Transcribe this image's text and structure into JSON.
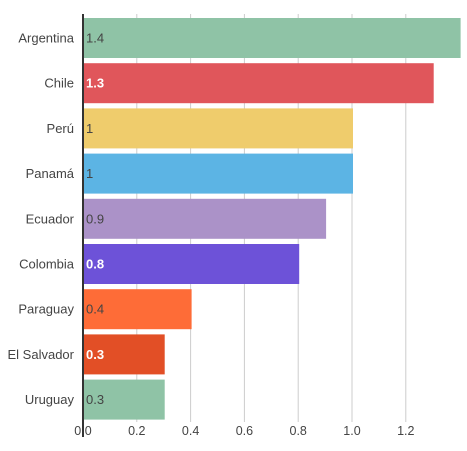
{
  "chart_data": {
    "type": "bar",
    "orientation": "horizontal",
    "categories": [
      "Argentina",
      "Chile",
      "Perú",
      "Panamá",
      "Ecuador",
      "Colombia",
      "Paraguay",
      "El Salvador",
      "Uruguay"
    ],
    "values": [
      1.4,
      1.3,
      1.0,
      1.0,
      0.9,
      0.8,
      0.4,
      0.3,
      0.3
    ],
    "data_labels": [
      "1.4",
      "1.3",
      "1",
      "1",
      "0.9",
      "0.8",
      "0.4",
      "0.3",
      "0.3"
    ],
    "colors": [
      "#8fc3a6",
      "#e0565b",
      "#efcc6c",
      "#5cb4e4",
      "#ab92c8",
      "#6d52d8",
      "#fe6c37",
      "#e24f26",
      "#8fc3a6"
    ],
    "label_styles": [
      "dark",
      "light",
      "dark",
      "dark",
      "dark",
      "light",
      "dark",
      "light",
      "dark"
    ],
    "x_ticks": [
      "0.0",
      "0.2",
      "0.4",
      "0.6",
      "0.8",
      "1.0",
      "1.2"
    ],
    "x_tick_values": [
      0,
      0.2,
      0.4,
      0.6,
      0.8,
      1.0,
      1.2
    ],
    "xlim": [
      0,
      1.4
    ],
    "grid": true,
    "title": "",
    "xlabel": "",
    "ylabel": ""
  }
}
